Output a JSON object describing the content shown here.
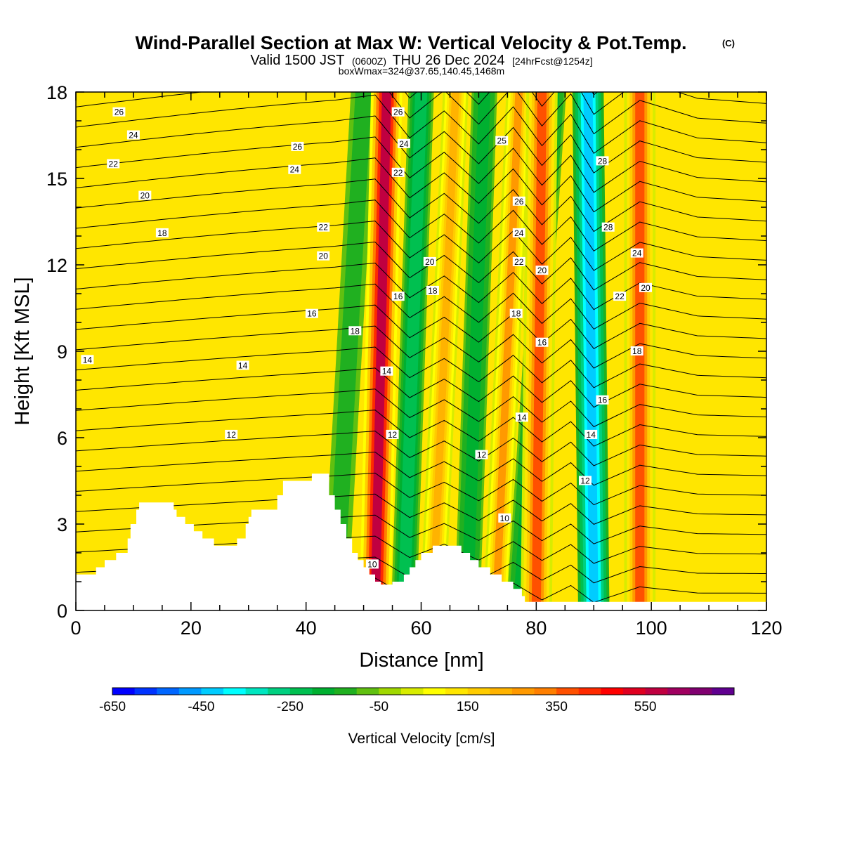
{
  "title": {
    "main": "Wind-Parallel Section at Max W: Vertical Velocity & Pot.Temp.",
    "copyright": "(C)",
    "valid_prefix": "Valid 1500 JST",
    "valid_z": "(0600Z)",
    "valid_date": "THU 26 Dec 2024",
    "forecast": "[24hrFcst@1254z]",
    "box_info": "boxWmax=324@37.65,140.45,1468m"
  },
  "colorbar": {
    "title": "Vertical Velocity [cm/s]",
    "labels": [
      "-650",
      "-450",
      "-250",
      "-50",
      "150",
      "350",
      "550"
    ],
    "colors": [
      "#0000ff",
      "#0033ff",
      "#0066ff",
      "#0099ff",
      "#00ccff",
      "#00ffff",
      "#00e6c0",
      "#00d080",
      "#00c050",
      "#00b030",
      "#20b020",
      "#60c010",
      "#a0d800",
      "#d8ec00",
      "#ffff00",
      "#ffe600",
      "#ffcc00",
      "#ffb300",
      "#ff9900",
      "#ff7f00",
      "#ff5000",
      "#ff2a00",
      "#ff0000",
      "#e00020",
      "#c00040",
      "#a00060",
      "#800070",
      "#600090"
    ]
  },
  "chart_data": {
    "type": "heatmap",
    "xlabel": "Distance [nm]",
    "ylabel": "Height [Kft MSL]",
    "xlim": [
      0,
      120
    ],
    "ylim": [
      0,
      18
    ],
    "xticks": [
      "0",
      "20",
      "40",
      "60",
      "80",
      "100",
      "120"
    ],
    "yticks": [
      "0",
      "3",
      "6",
      "9",
      "12",
      "15",
      "18"
    ],
    "velocity_bands": [
      {
        "x_bottom": 45,
        "x_top": 50,
        "value": -150
      },
      {
        "x_bottom": 52,
        "x_top": 54,
        "value": 550
      },
      {
        "x_bottom": 57,
        "x_top": 60,
        "value": -250
      },
      {
        "x_bottom": 62,
        "x_top": 66,
        "value": 200
      },
      {
        "x_bottom": 68,
        "x_top": 71,
        "value": -200
      },
      {
        "x_bottom": 73,
        "x_top": 77,
        "value": 250
      },
      {
        "x_bottom": 77,
        "x_top": 83,
        "value": -200
      },
      {
        "x_bottom": 80,
        "x_top": 81,
        "value": 350
      },
      {
        "x_bottom": 90,
        "x_top": 89,
        "value": -450
      },
      {
        "x_bottom": 98,
        "x_top": 98,
        "value": 350
      }
    ],
    "contour_labels": [
      {
        "x": 7.5,
        "y": 17.3,
        "text": "26"
      },
      {
        "x": 10,
        "y": 16.5,
        "text": "24"
      },
      {
        "x": 6.5,
        "y": 15.5,
        "text": "22"
      },
      {
        "x": 12,
        "y": 14.4,
        "text": "20"
      },
      {
        "x": 15,
        "y": 13.1,
        "text": "18"
      },
      {
        "x": 2,
        "y": 8.7,
        "text": "14"
      },
      {
        "x": 29,
        "y": 8.5,
        "text": "14"
      },
      {
        "x": 27,
        "y": 6.1,
        "text": "12"
      },
      {
        "x": 38.5,
        "y": 16.1,
        "text": "26"
      },
      {
        "x": 38,
        "y": 15.3,
        "text": "24"
      },
      {
        "x": 43,
        "y": 13.3,
        "text": "22"
      },
      {
        "x": 43,
        "y": 12.3,
        "text": "20"
      },
      {
        "x": 41,
        "y": 10.3,
        "text": "16"
      },
      {
        "x": 48.5,
        "y": 9.7,
        "text": "18"
      },
      {
        "x": 54,
        "y": 8.3,
        "text": "14"
      },
      {
        "x": 55,
        "y": 6.1,
        "text": "12"
      },
      {
        "x": 51.5,
        "y": 1.6,
        "text": "10"
      },
      {
        "x": 56,
        "y": 17.3,
        "text": "26"
      },
      {
        "x": 57,
        "y": 16.2,
        "text": "24"
      },
      {
        "x": 56,
        "y": 15.2,
        "text": "22"
      },
      {
        "x": 56,
        "y": 10.9,
        "text": "16"
      },
      {
        "x": 61.5,
        "y": 12.1,
        "text": "20"
      },
      {
        "x": 62,
        "y": 11.1,
        "text": "18"
      },
      {
        "x": 74,
        "y": 16.3,
        "text": "25"
      },
      {
        "x": 77,
        "y": 14.2,
        "text": "26"
      },
      {
        "x": 77,
        "y": 13.1,
        "text": "24"
      },
      {
        "x": 77,
        "y": 12.1,
        "text": "22"
      },
      {
        "x": 81,
        "y": 11.8,
        "text": "20"
      },
      {
        "x": 76.5,
        "y": 10.3,
        "text": "18"
      },
      {
        "x": 81,
        "y": 9.3,
        "text": "16"
      },
      {
        "x": 77.5,
        "y": 6.7,
        "text": "14"
      },
      {
        "x": 70.5,
        "y": 5.4,
        "text": "12"
      },
      {
        "x": 74.5,
        "y": 3.2,
        "text": "10"
      },
      {
        "x": 91.5,
        "y": 15.6,
        "text": "28"
      },
      {
        "x": 92.5,
        "y": 13.3,
        "text": "28"
      },
      {
        "x": 97.5,
        "y": 12.4,
        "text": "24"
      },
      {
        "x": 94.5,
        "y": 10.9,
        "text": "22"
      },
      {
        "x": 99,
        "y": 11.2,
        "text": "20"
      },
      {
        "x": 97.5,
        "y": 9.0,
        "text": "18"
      },
      {
        "x": 91.5,
        "y": 7.3,
        "text": "16"
      },
      {
        "x": 89.5,
        "y": 6.1,
        "text": "14"
      },
      {
        "x": 88.5,
        "y": 4.5,
        "text": "12"
      }
    ],
    "terrain_kft": [
      [
        0,
        1.25
      ],
      [
        2,
        1.25
      ],
      [
        3.5,
        1.5
      ],
      [
        5,
        1.75
      ],
      [
        7,
        2.0
      ],
      [
        9,
        2.5
      ],
      [
        9.5,
        3.0
      ],
      [
        10.5,
        3.5
      ],
      [
        11,
        3.75
      ],
      [
        15,
        3.75
      ],
      [
        17,
        3.5
      ],
      [
        17.5,
        3.25
      ],
      [
        19,
        3.0
      ],
      [
        20.5,
        2.75
      ],
      [
        22,
        2.5
      ],
      [
        24,
        2.25
      ],
      [
        27,
        2.25
      ],
      [
        28,
        2.5
      ],
      [
        29.5,
        3.0
      ],
      [
        30,
        3.25
      ],
      [
        30.5,
        3.5
      ],
      [
        33,
        3.5
      ],
      [
        35,
        4.0
      ],
      [
        36,
        4.5
      ],
      [
        37,
        4.5
      ],
      [
        40,
        4.5
      ],
      [
        41,
        4.75
      ],
      [
        43,
        4.75
      ],
      [
        44,
        4.0
      ],
      [
        45,
        3.5
      ],
      [
        46,
        3.0
      ],
      [
        47,
        2.5
      ],
      [
        48,
        2.0
      ],
      [
        49,
        1.75
      ],
      [
        50,
        1.5
      ],
      [
        51,
        1.25
      ],
      [
        52,
        1.0
      ],
      [
        53,
        0.9
      ],
      [
        55,
        1.0
      ],
      [
        57,
        1.25
      ],
      [
        58,
        1.5
      ],
      [
        59,
        1.75
      ],
      [
        60,
        2.0
      ],
      [
        62,
        2.25
      ],
      [
        66,
        2.25
      ],
      [
        67,
        2.0
      ],
      [
        68.5,
        1.75
      ],
      [
        70,
        1.5
      ],
      [
        72,
        1.25
      ],
      [
        74,
        1.0
      ],
      [
        76,
        0.75
      ],
      [
        77.5,
        0.5
      ],
      [
        78,
        0.3
      ],
      [
        80,
        0.3
      ],
      [
        120,
        0.3
      ]
    ]
  }
}
